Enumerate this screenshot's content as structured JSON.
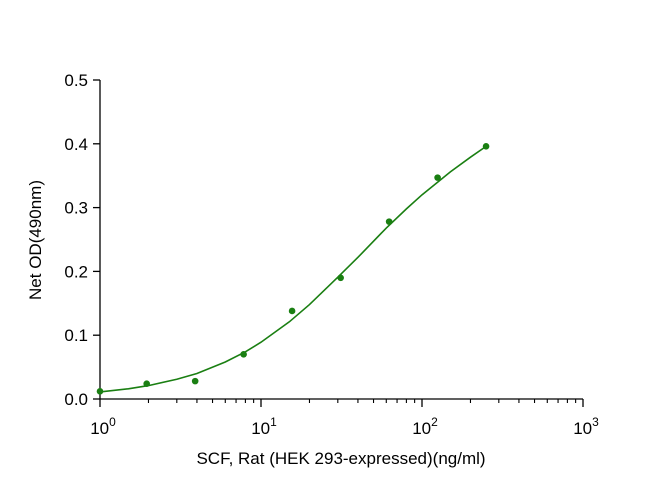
{
  "chart_data": {
    "type": "scatter",
    "xscale": "log",
    "xlabel": "SCF, Rat (HEK 293-expressed)(ng/ml)",
    "ylabel": "Net OD(490nm)",
    "xlim": [
      1,
      1000
    ],
    "ylim": [
      0,
      0.5
    ],
    "xticks": [
      {
        "value": 1,
        "base": "10",
        "exp": "0"
      },
      {
        "value": 10,
        "base": "10",
        "exp": "1"
      },
      {
        "value": 100,
        "base": "10",
        "exp": "2"
      },
      {
        "value": 1000,
        "base": "10",
        "exp": "3"
      }
    ],
    "yticks": [
      {
        "value": 0,
        "label": "0.0"
      },
      {
        "value": 0.1,
        "label": "0.1"
      },
      {
        "value": 0.2,
        "label": "0.2"
      },
      {
        "value": 0.3,
        "label": "0.3"
      },
      {
        "value": 0.4,
        "label": "0.4"
      },
      {
        "value": 0.5,
        "label": "0.5"
      }
    ],
    "points": [
      {
        "x": 1.0,
        "y": 0.012
      },
      {
        "x": 1.95,
        "y": 0.024
      },
      {
        "x": 3.9,
        "y": 0.028
      },
      {
        "x": 7.8,
        "y": 0.07
      },
      {
        "x": 15.6,
        "y": 0.138
      },
      {
        "x": 31.25,
        "y": 0.19
      },
      {
        "x": 62.5,
        "y": 0.278
      },
      {
        "x": 125,
        "y": 0.347
      },
      {
        "x": 250,
        "y": 0.396
      }
    ],
    "fit_curve": {
      "x": [
        1,
        1.5,
        2,
        3,
        4,
        6,
        8,
        10,
        15,
        20,
        30,
        40,
        60,
        80,
        100,
        150,
        200,
        250
      ],
      "y": [
        0.011,
        0.016,
        0.021,
        0.031,
        0.04,
        0.058,
        0.074,
        0.089,
        0.121,
        0.148,
        0.191,
        0.222,
        0.268,
        0.298,
        0.32,
        0.356,
        0.379,
        0.396
      ]
    },
    "color": "#1a7f12",
    "grid": false,
    "legend": "none"
  }
}
